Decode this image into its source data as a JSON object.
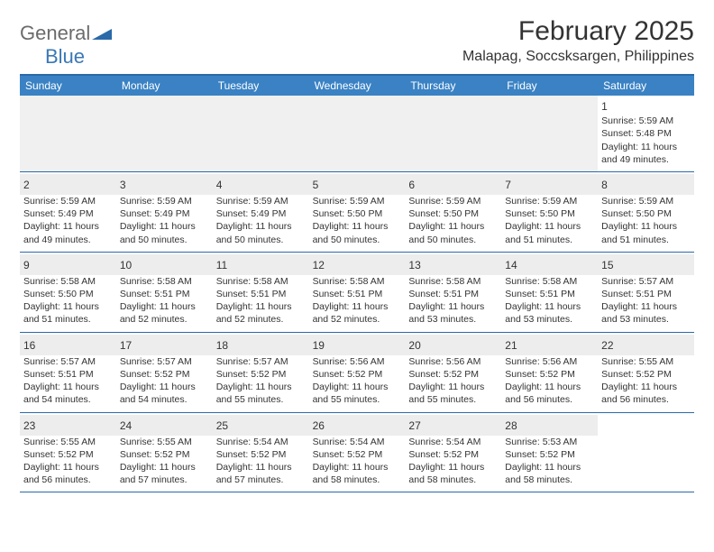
{
  "brand": {
    "part1": "General",
    "part2": "Blue"
  },
  "title": "February 2025",
  "location": "Malapag, Soccsksargen, Philippines",
  "style": {
    "header_bg": "#3a82c4",
    "border_color": "#2a6aa8",
    "alt_bg": "#f0f0f0",
    "text_color": "#333333",
    "logo_gray": "#6b6b6b",
    "logo_blue": "#3a78b5",
    "title_fontsize": 30,
    "location_fontsize": 16,
    "header_fontsize": 12,
    "cell_fontsize": 10.5
  },
  "day_headers": [
    "Sunday",
    "Monday",
    "Tuesday",
    "Wednesday",
    "Thursday",
    "Friday",
    "Saturday"
  ],
  "weeks": [
    [
      {
        "n": "",
        "sr": "",
        "ss": "",
        "dl": ""
      },
      {
        "n": "",
        "sr": "",
        "ss": "",
        "dl": ""
      },
      {
        "n": "",
        "sr": "",
        "ss": "",
        "dl": ""
      },
      {
        "n": "",
        "sr": "",
        "ss": "",
        "dl": ""
      },
      {
        "n": "",
        "sr": "",
        "ss": "",
        "dl": ""
      },
      {
        "n": "",
        "sr": "",
        "ss": "",
        "dl": ""
      },
      {
        "n": "1",
        "sr": "Sunrise: 5:59 AM",
        "ss": "Sunset: 5:48 PM",
        "dl": "Daylight: 11 hours and 49 minutes."
      }
    ],
    [
      {
        "n": "2",
        "sr": "Sunrise: 5:59 AM",
        "ss": "Sunset: 5:49 PM",
        "dl": "Daylight: 11 hours and 49 minutes."
      },
      {
        "n": "3",
        "sr": "Sunrise: 5:59 AM",
        "ss": "Sunset: 5:49 PM",
        "dl": "Daylight: 11 hours and 50 minutes."
      },
      {
        "n": "4",
        "sr": "Sunrise: 5:59 AM",
        "ss": "Sunset: 5:49 PM",
        "dl": "Daylight: 11 hours and 50 minutes."
      },
      {
        "n": "5",
        "sr": "Sunrise: 5:59 AM",
        "ss": "Sunset: 5:50 PM",
        "dl": "Daylight: 11 hours and 50 minutes."
      },
      {
        "n": "6",
        "sr": "Sunrise: 5:59 AM",
        "ss": "Sunset: 5:50 PM",
        "dl": "Daylight: 11 hours and 50 minutes."
      },
      {
        "n": "7",
        "sr": "Sunrise: 5:59 AM",
        "ss": "Sunset: 5:50 PM",
        "dl": "Daylight: 11 hours and 51 minutes."
      },
      {
        "n": "8",
        "sr": "Sunrise: 5:59 AM",
        "ss": "Sunset: 5:50 PM",
        "dl": "Daylight: 11 hours and 51 minutes."
      }
    ],
    [
      {
        "n": "9",
        "sr": "Sunrise: 5:58 AM",
        "ss": "Sunset: 5:50 PM",
        "dl": "Daylight: 11 hours and 51 minutes."
      },
      {
        "n": "10",
        "sr": "Sunrise: 5:58 AM",
        "ss": "Sunset: 5:51 PM",
        "dl": "Daylight: 11 hours and 52 minutes."
      },
      {
        "n": "11",
        "sr": "Sunrise: 5:58 AM",
        "ss": "Sunset: 5:51 PM",
        "dl": "Daylight: 11 hours and 52 minutes."
      },
      {
        "n": "12",
        "sr": "Sunrise: 5:58 AM",
        "ss": "Sunset: 5:51 PM",
        "dl": "Daylight: 11 hours and 52 minutes."
      },
      {
        "n": "13",
        "sr": "Sunrise: 5:58 AM",
        "ss": "Sunset: 5:51 PM",
        "dl": "Daylight: 11 hours and 53 minutes."
      },
      {
        "n": "14",
        "sr": "Sunrise: 5:58 AM",
        "ss": "Sunset: 5:51 PM",
        "dl": "Daylight: 11 hours and 53 minutes."
      },
      {
        "n": "15",
        "sr": "Sunrise: 5:57 AM",
        "ss": "Sunset: 5:51 PM",
        "dl": "Daylight: 11 hours and 53 minutes."
      }
    ],
    [
      {
        "n": "16",
        "sr": "Sunrise: 5:57 AM",
        "ss": "Sunset: 5:51 PM",
        "dl": "Daylight: 11 hours and 54 minutes."
      },
      {
        "n": "17",
        "sr": "Sunrise: 5:57 AM",
        "ss": "Sunset: 5:52 PM",
        "dl": "Daylight: 11 hours and 54 minutes."
      },
      {
        "n": "18",
        "sr": "Sunrise: 5:57 AM",
        "ss": "Sunset: 5:52 PM",
        "dl": "Daylight: 11 hours and 55 minutes."
      },
      {
        "n": "19",
        "sr": "Sunrise: 5:56 AM",
        "ss": "Sunset: 5:52 PM",
        "dl": "Daylight: 11 hours and 55 minutes."
      },
      {
        "n": "20",
        "sr": "Sunrise: 5:56 AM",
        "ss": "Sunset: 5:52 PM",
        "dl": "Daylight: 11 hours and 55 minutes."
      },
      {
        "n": "21",
        "sr": "Sunrise: 5:56 AM",
        "ss": "Sunset: 5:52 PM",
        "dl": "Daylight: 11 hours and 56 minutes."
      },
      {
        "n": "22",
        "sr": "Sunrise: 5:55 AM",
        "ss": "Sunset: 5:52 PM",
        "dl": "Daylight: 11 hours and 56 minutes."
      }
    ],
    [
      {
        "n": "23",
        "sr": "Sunrise: 5:55 AM",
        "ss": "Sunset: 5:52 PM",
        "dl": "Daylight: 11 hours and 56 minutes."
      },
      {
        "n": "24",
        "sr": "Sunrise: 5:55 AM",
        "ss": "Sunset: 5:52 PM",
        "dl": "Daylight: 11 hours and 57 minutes."
      },
      {
        "n": "25",
        "sr": "Sunrise: 5:54 AM",
        "ss": "Sunset: 5:52 PM",
        "dl": "Daylight: 11 hours and 57 minutes."
      },
      {
        "n": "26",
        "sr": "Sunrise: 5:54 AM",
        "ss": "Sunset: 5:52 PM",
        "dl": "Daylight: 11 hours and 58 minutes."
      },
      {
        "n": "27",
        "sr": "Sunrise: 5:54 AM",
        "ss": "Sunset: 5:52 PM",
        "dl": "Daylight: 11 hours and 58 minutes."
      },
      {
        "n": "28",
        "sr": "Sunrise: 5:53 AM",
        "ss": "Sunset: 5:52 PM",
        "dl": "Daylight: 11 hours and 58 minutes."
      },
      {
        "n": "",
        "sr": "",
        "ss": "",
        "dl": ""
      }
    ]
  ]
}
